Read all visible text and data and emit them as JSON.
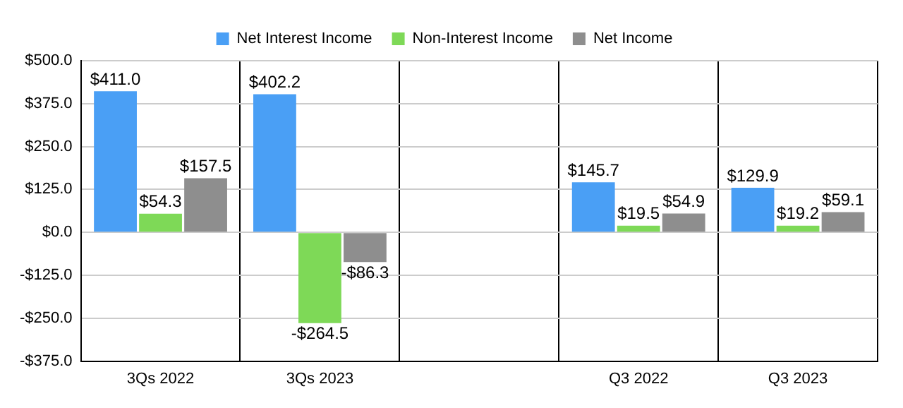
{
  "chart_data": {
    "type": "bar",
    "categories": [
      "3Qs 2022",
      "3Qs 2023",
      null,
      "Q3 2022",
      "Q3 2023"
    ],
    "series": [
      {
        "name": "Net Interest Income",
        "color": "#4a9ff5",
        "values": [
          411.0,
          402.2,
          null,
          145.7,
          129.9
        ],
        "value_labels": [
          "$411.0",
          "$402.2",
          null,
          "$145.7",
          "$129.9"
        ]
      },
      {
        "name": "Non-Interest Income",
        "color": "#7ed957",
        "values": [
          54.3,
          -264.5,
          null,
          19.5,
          19.2
        ],
        "value_labels": [
          "$54.3",
          "-$264.5",
          null,
          "$19.5",
          "$19.2"
        ]
      },
      {
        "name": "Net Income",
        "color": "#8e8e8e",
        "values": [
          157.5,
          -86.3,
          null,
          54.9,
          59.1
        ],
        "value_labels": [
          "$157.5",
          "-$86.3",
          null,
          "$54.9",
          "$59.1"
        ]
      }
    ],
    "ylim": [
      -375,
      500
    ],
    "yticks": [
      {
        "value": 500,
        "label": "$500.0"
      },
      {
        "value": 375,
        "label": "$375.0"
      },
      {
        "value": 250,
        "label": "$250.0"
      },
      {
        "value": 125,
        "label": "$125.0"
      },
      {
        "value": 0,
        "label": "$0.0"
      },
      {
        "value": -125,
        "label": "-$125.0"
      },
      {
        "value": -250,
        "label": "-$250.0"
      },
      {
        "value": -375,
        "label": "-$375.0"
      }
    ],
    "grid": true,
    "legend": "top"
  }
}
